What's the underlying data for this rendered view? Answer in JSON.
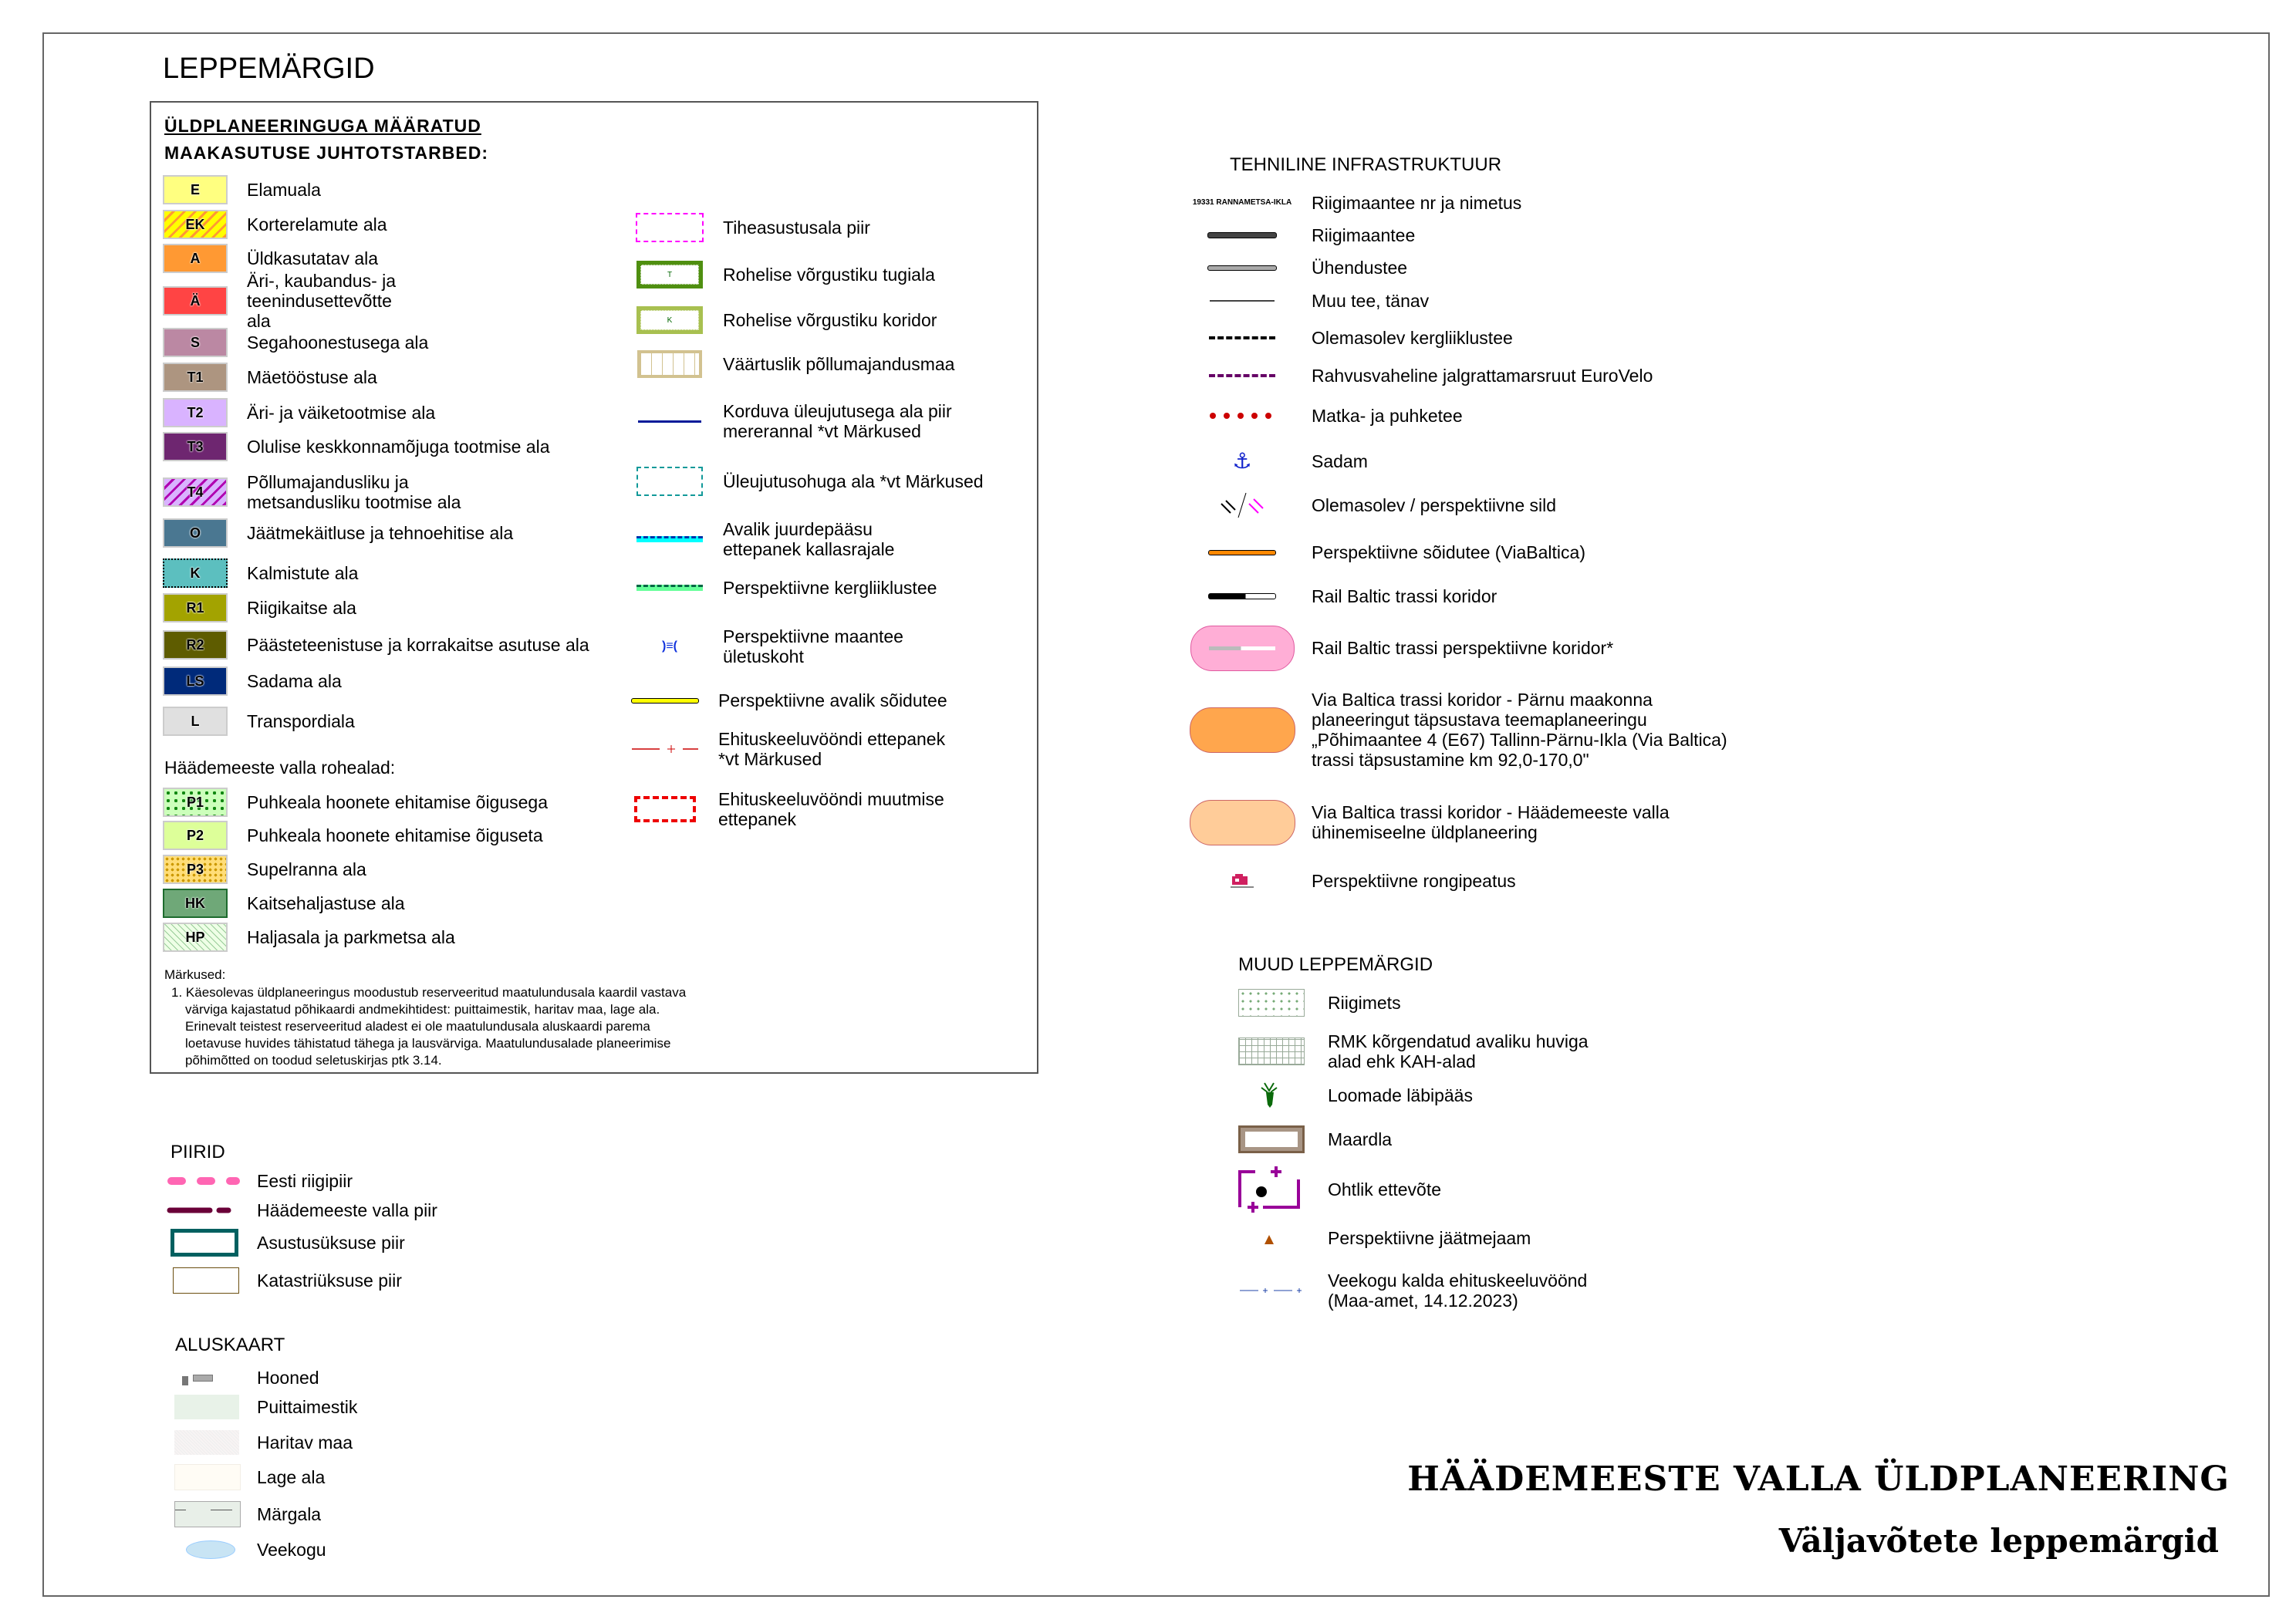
{
  "title": "LEPPEMÄRGID",
  "general": {
    "heading1": "ÜLDPLANEERINGUGA MÄÄRATUD",
    "heading2": "MAAKASUTUSE JUHTOTSTARBED:",
    "land_use": [
      {
        "code": "E",
        "label": "Elamuala"
      },
      {
        "code": "EK",
        "label": "Korterelamute ala"
      },
      {
        "code": "A",
        "label": "Üldkasutatav ala"
      },
      {
        "code": "Ä",
        "label": "Äri-, kaubandus- ja teenindusettevõtte ala"
      },
      {
        "code": "S",
        "label": "Segahoonestusega ala"
      },
      {
        "code": "T1",
        "label": "Mäetööstuse ala"
      },
      {
        "code": "T2",
        "label": "Äri- ja väiketootmise ala"
      },
      {
        "code": "T3",
        "label": "Olulise keskkonnamõjuga tootmise ala"
      },
      {
        "code": "T4",
        "label": "Põllumajandusliku ja metsandusliku tootmise ala"
      },
      {
        "code": "O",
        "label": "Jäätmekäitluse ja tehnoehitise ala"
      },
      {
        "code": "K",
        "label": "Kalmistute ala"
      },
      {
        "code": "R1",
        "label": "Riigikaitse ala"
      },
      {
        "code": "R2",
        "label": "Päästeteenistuse ja korrakaitse asutuse ala"
      },
      {
        "code": "LS",
        "label": "Sadama ala"
      },
      {
        "code": "L",
        "label": "Transpordiala"
      }
    ],
    "green_heading": "Häädemeeste valla rohealad:",
    "green": [
      {
        "code": "P1",
        "label": "Puhkeala hoonete ehitamise õigusega"
      },
      {
        "code": "P2",
        "label": "Puhkeala hoonete ehitamise õiguseta"
      },
      {
        "code": "P3",
        "label": "Supelranna ala"
      },
      {
        "code": "HK",
        "label": "Kaitsehaljastuse ala"
      },
      {
        "code": "HP",
        "label": "Haljasala ja parkmetsa ala"
      }
    ],
    "notes_heading": "Märkused:",
    "notes": "1. Käesolevas üldplaneeringus moodustub reserveeritud maatulundusala kaardil vastava värviga kajastatud põhikaardi andmekihtidest: puittaimestik, haritav maa, lage ala. Erinevalt teistest reserveeritud aladest ei ole maatulundusala aluskaardi parema loetavuse huvides tähistatud tähega ja lausvärviga. Maatulundusalade planeerimise põhimõtted on toodud seletuskirjas ptk 3.14.",
    "other": [
      {
        "label": "Tiheasustusala piir"
      },
      {
        "code": "T",
        "label": "Rohelise võrgustiku tugiala"
      },
      {
        "code": "K",
        "label": "Rohelise võrgustiku koridor"
      },
      {
        "label": "Väärtuslik põllumajandusmaa"
      },
      {
        "label": "Korduva üleujutusega ala piir mererannal *vt Märkused"
      },
      {
        "label": "Üleujutusohuga ala *vt Märkused"
      },
      {
        "label": "Avalik juurdepääsu ettepanek kallasrajale"
      },
      {
        "label": "Perspektiivne kergliiklustee"
      },
      {
        "label": "Perspektiivne maantee ületuskoht"
      },
      {
        "label": "Perspektiivne avalik sõidutee"
      },
      {
        "label": "Ehituskeeluvööndi ettepanek *vt Märkused"
      },
      {
        "label": "Ehituskeeluvööndi muutmise ettepanek"
      }
    ]
  },
  "infra": {
    "heading": "TEHNILINE INFRASTRUKTUUR",
    "road_sample": "19331 RANNAMETSA-IKLA",
    "items": [
      {
        "label": "Riigimaantee nr ja nimetus"
      },
      {
        "label": "Riigimaantee"
      },
      {
        "label": "Ühendustee"
      },
      {
        "label": "Muu tee, tänav"
      },
      {
        "label": "Olemasolev kergliiklustee"
      },
      {
        "label": "Rahvusvaheline jalgrattamarsruut EuroVelo"
      },
      {
        "label": "Matka- ja puhketee"
      },
      {
        "label": "Sadam",
        "icon": "anchor-icon"
      },
      {
        "label": "Olemasolev / perspektiivne sild",
        "icon": "bridge-icon"
      },
      {
        "label": "Perspektiivne sõidutee (ViaBaltica)"
      },
      {
        "label": "Rail Baltic trassi koridor"
      },
      {
        "label": "Rail Baltic trassi perspektiivne koridor*"
      },
      {
        "label": "Via Baltica trassi koridor - Pärnu maakonna planeeringut täpsustava teemaplaneeringu „Põhimaantee 4 (E67) Tallinn-Pärnu-Ikla (Via Baltica) trassi täpsustamine km 92,0-170,0\""
      },
      {
        "label": "Via Baltica trassi koridor - Häädemeeste valla ühinemiseelne üldplaneering"
      },
      {
        "label": "Perspektiivne rongipeatus",
        "icon": "train-icon"
      }
    ]
  },
  "other": {
    "heading": "MUUD LEPPEMÄRGID",
    "items": [
      {
        "label": "Riigimets"
      },
      {
        "label": "RMK kõrgendatud avaliku huviga alad ehk KAH-alad"
      },
      {
        "label": "Loomade läbipääs",
        "icon": "deer-icon"
      },
      {
        "label": "Maardla"
      },
      {
        "label": "Ohtlik ettevõte"
      },
      {
        "label": "Perspektiivne jäätmejaam",
        "icon": "triangle-icon"
      },
      {
        "label": "Veekogu kalda ehituskeeluvöönd (Maa-amet, 14.12.2023)"
      }
    ]
  },
  "borders": {
    "heading": "PIIRID",
    "items": [
      {
        "label": "Eesti riigipiir"
      },
      {
        "label": "Häädemeeste valla piir"
      },
      {
        "label": "Asustusüksuse piir"
      },
      {
        "label": "Katastriüksuse piir"
      }
    ]
  },
  "basemap": {
    "heading": "ALUSKAART",
    "items": [
      {
        "label": "Hooned"
      },
      {
        "label": "Puittaimestik"
      },
      {
        "label": "Haritav maa"
      },
      {
        "label": "Lage ala"
      },
      {
        "label": "Märgala"
      },
      {
        "label": "Veekogu"
      }
    ]
  },
  "footer": {
    "title": "HÄÄDEMEESTE VALLA ÜLDPLANEERING",
    "subtitle": "Väljavõtete leppemärgid"
  }
}
